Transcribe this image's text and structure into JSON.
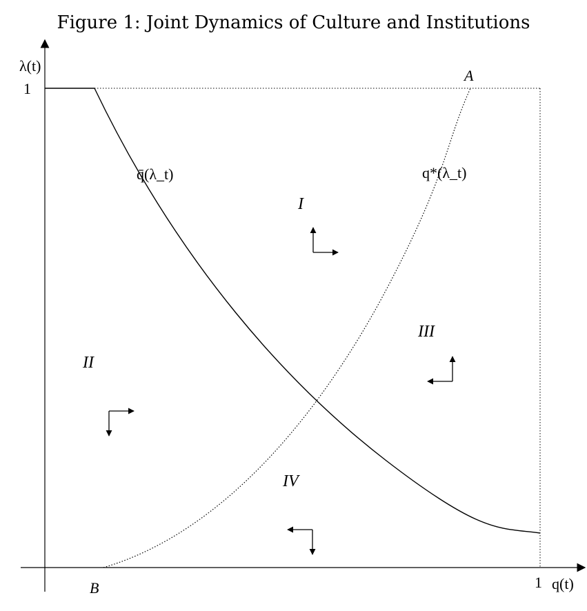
{
  "title": "Figure 1: Joint Dynamics of Culture and Institutions",
  "axes": {
    "y_label": "λ(t)",
    "x_label": "q(t)",
    "y_tick_one": "1",
    "x_tick_one": "1"
  },
  "curves": {
    "qbar": "q̄(λ_t)",
    "qstar": "q*(λ_t)"
  },
  "points": {
    "A": "A",
    "B": "B"
  },
  "regions": {
    "I": "I",
    "II": "II",
    "III": "III",
    "IV": "IV"
  }
}
